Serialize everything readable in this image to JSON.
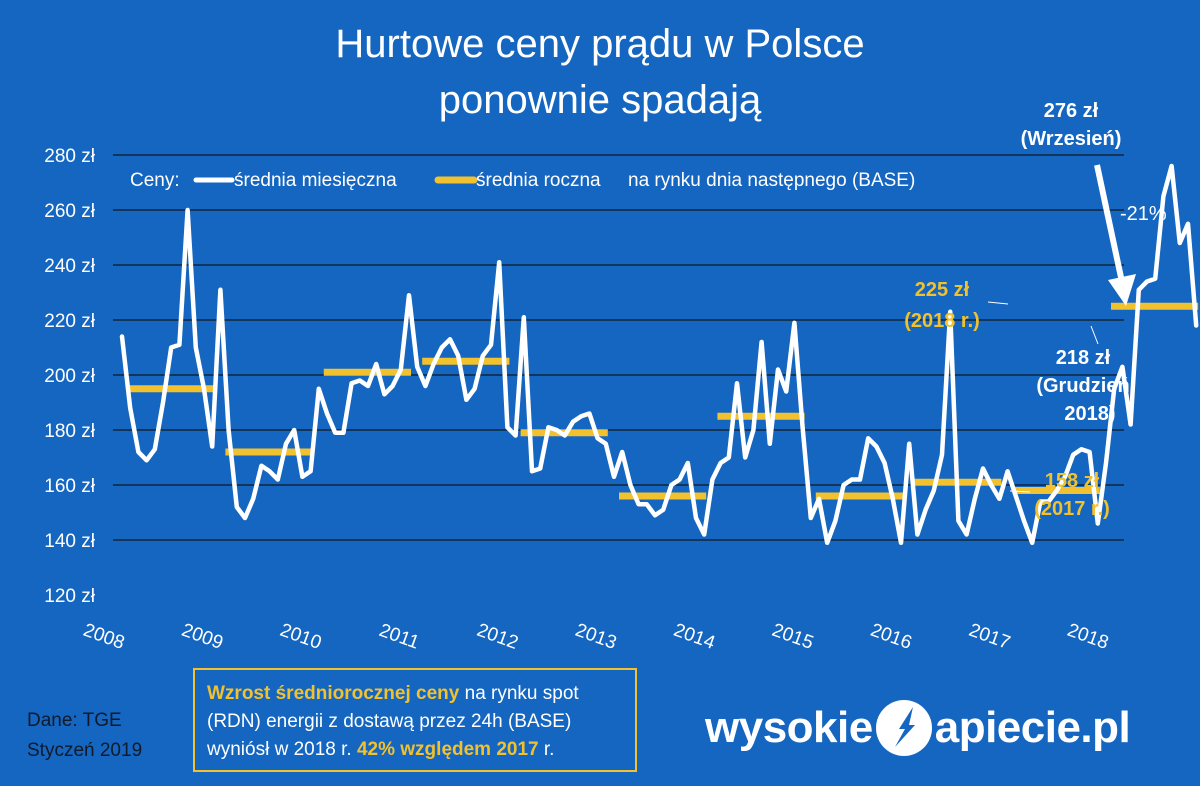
{
  "title_line1": "Hurtowe ceny prądu w Polsce",
  "title_line2": "ponownie spadają",
  "legend": {
    "prefix": "Ceny:",
    "monthly": "średnia miesięczna",
    "annual": "średnia roczna",
    "suffix": "na rynku dnia następnego (BASE)"
  },
  "annotations": {
    "peak_value": "276 zł",
    "peak_month": "(Wrzesień)",
    "drop": "-21%",
    "y2018_value": "225 zł",
    "y2018_label": "(2018 r.)",
    "dec_value": "218 zł",
    "dec_label1": "(Grudzień",
    "dec_label2": "2018)",
    "y2017_value": "158 zł",
    "y2017_label": "(2017 r.)"
  },
  "info_box": {
    "part1_bold": "Wzrost średniorocznej ceny",
    "part2": " na rynku spot (RDN) energii z dostawą przez 24h (BASE) wyniósł w 2018 r. ",
    "part3_bold": "42% względem 2017",
    "part4": " r."
  },
  "source": {
    "line1": "Dane: TGE",
    "line2": "Styczeń 2019"
  },
  "logo": {
    "left": "wysokie",
    "right": "apiecie.pl"
  },
  "colors": {
    "background": "#1566c0",
    "monthly_line": "#ffffff",
    "annual_line": "#f2c12e",
    "accent_text": "#f2c12e"
  },
  "chart_data": {
    "type": "line",
    "ylim": [
      120,
      280
    ],
    "y_ticks": [
      120,
      140,
      160,
      180,
      200,
      220,
      240,
      260,
      280
    ],
    "y_tick_suffix": " zł",
    "x_tick_labels": [
      "2008",
      "2009",
      "2010",
      "2011",
      "2012",
      "2013",
      "2014",
      "2015",
      "2016",
      "2017",
      "2018"
    ],
    "grid": true,
    "legend_position": "top",
    "monthly_series": {
      "name": "średnia miesięczna",
      "values": [
        214,
        188,
        172,
        169,
        173,
        190,
        210,
        211,
        260,
        210,
        195,
        174,
        231,
        180,
        152,
        148,
        155,
        167,
        165,
        162,
        175,
        180,
        163,
        165,
        195,
        186,
        179,
        179,
        197,
        198,
        196,
        204,
        193,
        196,
        202,
        229,
        203,
        196,
        204,
        210,
        213,
        207,
        191,
        195,
        207,
        211,
        241,
        181,
        178,
        221,
        165,
        166,
        181,
        180,
        178,
        183,
        185,
        186,
        177,
        175,
        163,
        172,
        160,
        153,
        153,
        149,
        151,
        160,
        162,
        168,
        148,
        142,
        162,
        168,
        170,
        197,
        170,
        180,
        212,
        175,
        202,
        194,
        219,
        181,
        148,
        155,
        139,
        147,
        160,
        162,
        162,
        177,
        174,
        168,
        155,
        139,
        175,
        142,
        151,
        158,
        171,
        223,
        147,
        142,
        155,
        166,
        160,
        155,
        165,
        156,
        147,
        139,
        154,
        154,
        158,
        163,
        171,
        173,
        172,
        146,
        168,
        195,
        203,
        182,
        231,
        234,
        235,
        265,
        276,
        248,
        255,
        218
      ]
    },
    "annual_series": {
      "name": "średnia roczna na rynku dnia następnego (BASE)",
      "years": [
        "2008",
        "2009",
        "2010",
        "2011",
        "2012",
        "2013",
        "2014",
        "2015",
        "2016",
        "2017",
        "2018"
      ],
      "values": [
        195,
        172,
        201,
        205,
        179,
        156,
        185,
        156,
        161,
        158,
        225
      ]
    }
  }
}
